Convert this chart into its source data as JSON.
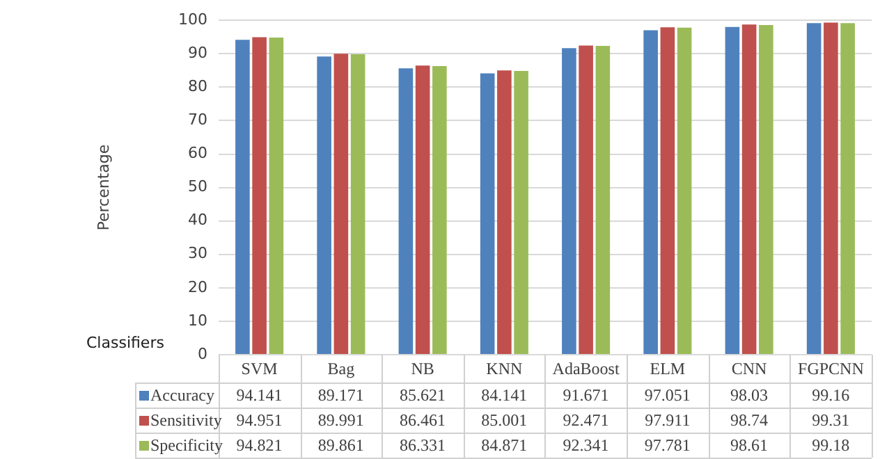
{
  "chart_data": {
    "type": "bar",
    "xlabel": "Classifiers",
    "ylabel": "Percentage",
    "categories": [
      "SVM",
      "Bag",
      "NB",
      "KNN",
      "AdaBoost",
      "ELM",
      "CNN",
      "FGPCNN"
    ],
    "series": [
      {
        "name": "Accuracy",
        "color": "#4f81bd",
        "values": [
          94.141,
          89.171,
          85.621,
          84.141,
          91.671,
          97.051,
          98.03,
          99.16
        ]
      },
      {
        "name": "Sensitivity",
        "color": "#c0504d",
        "values": [
          94.951,
          89.991,
          86.461,
          85.001,
          92.471,
          97.911,
          98.74,
          99.31
        ]
      },
      {
        "name": "Specificity",
        "color": "#9bbb59",
        "values": [
          94.821,
          89.861,
          86.331,
          84.871,
          92.341,
          97.781,
          98.61,
          99.18
        ]
      }
    ],
    "ylim": [
      0,
      100
    ],
    "yticks": [
      0,
      10,
      20,
      30,
      40,
      50,
      60,
      70,
      80,
      90,
      100
    ],
    "grid": "y",
    "legend": "bottom",
    "data_labels": true
  }
}
